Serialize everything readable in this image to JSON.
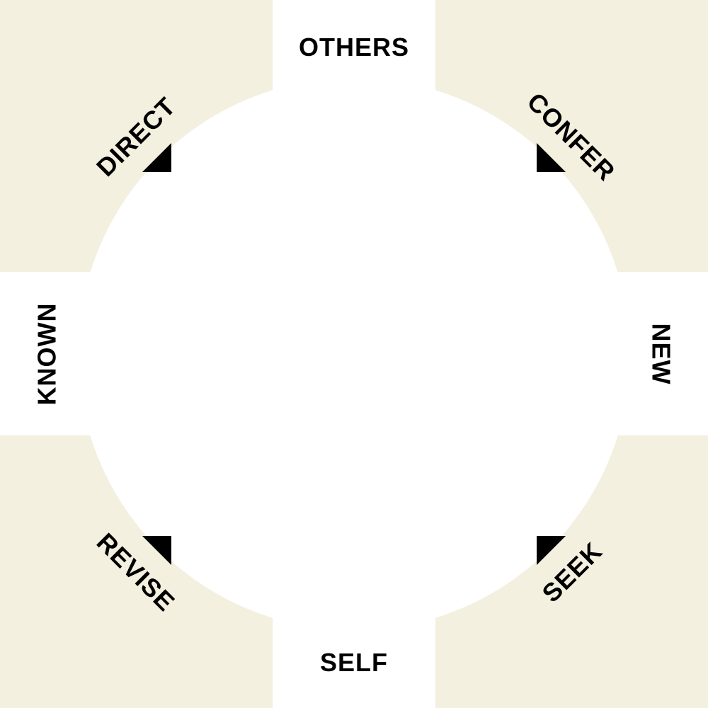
{
  "axes": {
    "top": "OTHERS",
    "bottom": "SELF",
    "left": "KNOWN",
    "right": "NEW"
  },
  "quadrants": {
    "top_left": "DIRECT",
    "top_right": "CONFER",
    "bottom_left": "REVISE",
    "bottom_right": "SEEK"
  },
  "colors": {
    "quadrant_fill": "#f3f0df",
    "background": "#ffffff",
    "text": "#000000",
    "marker": "#000000"
  }
}
